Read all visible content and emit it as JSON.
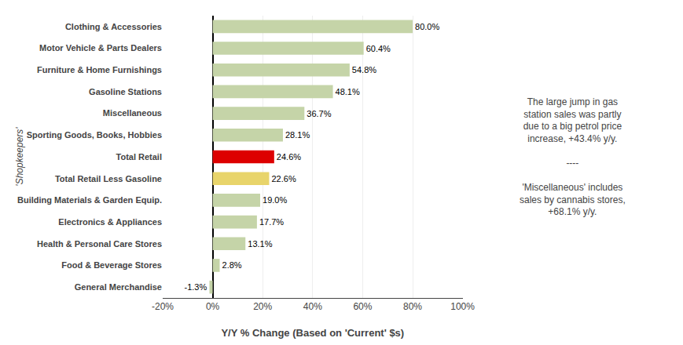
{
  "chart_data": {
    "type": "bar",
    "orientation": "horizontal",
    "categories": [
      "General Merchandise",
      "Food & Beverage Stores",
      "Health & Personal Care Stores",
      "Electronics & Appliances",
      "Building Materials & Garden Equip.",
      "Total Retail Less Gasoline",
      "Total Retail",
      "Sporting Goods, Books, Hobbies",
      "Miscellaneous",
      "Gasoline Stations",
      "Furniture & Home Furnishings",
      "Motor Vehicle & Parts Dealers",
      "Clothing & Accessories"
    ],
    "values": [
      -1.3,
      2.8,
      13.1,
      17.7,
      19.0,
      22.6,
      24.6,
      28.1,
      36.7,
      48.1,
      54.8,
      60.4,
      80.0
    ],
    "value_labels": [
      "-1.3%",
      "2.8%",
      "13.1%",
      "17.7%",
      "19.0%",
      "22.6%",
      "24.6%",
      "28.1%",
      "36.7%",
      "48.1%",
      "54.8%",
      "60.4%",
      "80.0%"
    ],
    "colors": [
      "#c5d4a8",
      "#c5d4a8",
      "#c5d4a8",
      "#c5d4a8",
      "#c5d4a8",
      "#e8d46a",
      "#dd0000",
      "#c5d4a8",
      "#c5d4a8",
      "#c5d4a8",
      "#c5d4a8",
      "#c5d4a8",
      "#c5d4a8"
    ],
    "data_labels": true,
    "xlabel": "Y/Y % Change (Based on 'Current' $s)",
    "ylabel": "'Shopkeepers'",
    "xlim": [
      -20,
      100
    ],
    "xticks": [
      {
        "value": -20,
        "label": "-20%"
      },
      {
        "value": 0,
        "label": "0%"
      },
      {
        "value": 20,
        "label": "20%"
      },
      {
        "value": 40,
        "label": "40%"
      },
      {
        "value": 60,
        "label": "60%"
      },
      {
        "value": 80,
        "label": "80%"
      },
      {
        "value": 100,
        "label": "100%"
      }
    ],
    "grid": true,
    "annotation": "The large jump in gas\nstation sales was partly\ndue to a big petrol price\nincrease, +43.4% y/y.\n\n----\n\n'Miscellaneous' includes\nsales by cannabis stores,\n+68.1% y/y."
  }
}
